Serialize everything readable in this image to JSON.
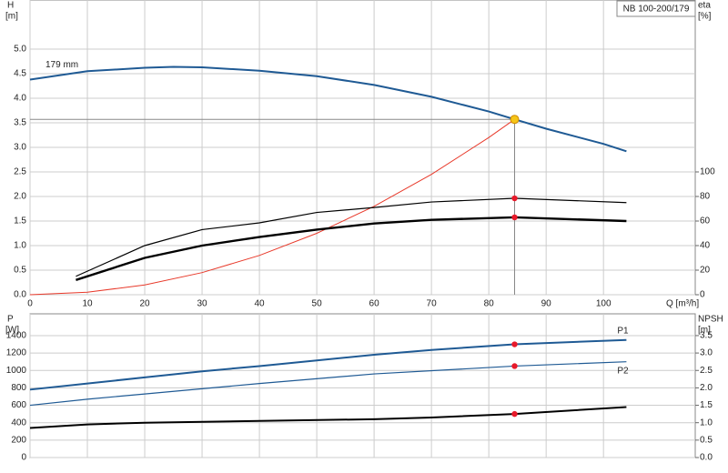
{
  "chart_data": [
    {
      "type": "line",
      "title": "NB 100-200/179",
      "y_label": "H",
      "y_unit": "[m]",
      "y2_label": "eta",
      "y2_unit": "[%]",
      "x_label": "Q [m³/h]",
      "xlim": [
        0,
        116
      ],
      "xticks": [
        0,
        10,
        20,
        30,
        40,
        50,
        60,
        70,
        80,
        90,
        100
      ],
      "ylim": [
        0,
        6
      ],
      "yticks": [
        {
          "value": 0,
          "label": "0.0"
        },
        0.5,
        {
          "value": 1,
          "label": "1.0"
        },
        1.5,
        {
          "value": 2,
          "label": "2.0"
        },
        2.5,
        {
          "value": 3,
          "label": "3.0"
        },
        3.5,
        {
          "value": 4,
          "label": "4.0"
        },
        4.5,
        {
          "value": 5,
          "label": "5.0"
        }
      ],
      "y2lim": [
        0,
        240
      ],
      "y2ticks": [
        0,
        20,
        40,
        60,
        80,
        100
      ],
      "grid": true,
      "duty_q": 84.5,
      "series": [
        {
          "name": "179 mm",
          "color": "#1f5a94",
          "width": 2,
          "duty_color": "#f5c518",
          "x": [
            0,
            10,
            20,
            25,
            30,
            40,
            50,
            60,
            70,
            80,
            84.5,
            90,
            100,
            104
          ],
          "values": [
            4.38,
            4.55,
            4.62,
            4.64,
            4.63,
            4.56,
            4.45,
            4.27,
            4.03,
            3.73,
            3.57,
            3.38,
            3.07,
            2.92
          ],
          "duty_point": 3.57
        },
        {
          "color": "#e8392a",
          "width": 1,
          "x": [
            0,
            10,
            20,
            30,
            40,
            50,
            60,
            70,
            80,
            84.5
          ],
          "values": [
            0,
            0.05,
            0.2,
            0.45,
            0.8,
            1.25,
            1.8,
            2.45,
            3.2,
            3.57
          ]
        },
        {
          "color": "#000000",
          "width": 1.2,
          "axis": "y2",
          "duty_color": "#e8192a",
          "x": [
            8,
            20,
            30,
            40,
            50,
            60,
            70,
            84.5,
            104
          ],
          "values": [
            15,
            40,
            53,
            58.5,
            67,
            71,
            75.5,
            78.5,
            75
          ],
          "duty_point": 78.5
        },
        {
          "color": "#000000",
          "width": 2.4,
          "axis": "y2",
          "duty_color": "#e8192a",
          "x": [
            8,
            20,
            30,
            40,
            50,
            60,
            70,
            84.5,
            104
          ],
          "values": [
            12,
            30,
            40,
            47,
            53,
            58,
            61,
            63,
            60
          ],
          "duty_point": 63
        }
      ]
    },
    {
      "type": "line",
      "y_label": "P",
      "y_unit": "[W]",
      "y2_label": "NPSH",
      "y2_unit": "[m]",
      "ylim": [
        0,
        1650
      ],
      "yticks": [
        0,
        200,
        400,
        600,
        800,
        1000,
        1200,
        1400
      ],
      "y2lim": [
        0,
        4.125
      ],
      "y2ticks": [
        {
          "value": 0,
          "label": "0.0"
        },
        0.5,
        {
          "value": 1,
          "label": "1.0"
        },
        1.5,
        {
          "value": 2,
          "label": "2.0"
        },
        2.5,
        {
          "value": 3,
          "label": "3.0"
        },
        3.5
      ],
      "grid": true,
      "series": [
        {
          "name": "P1",
          "color": "#1f5a94",
          "width": 2,
          "duty_color": "#e8192a",
          "x": [
            0,
            10,
            20,
            30,
            40,
            50,
            60,
            70,
            84.5,
            104
          ],
          "values": [
            780,
            850,
            920,
            990,
            1050,
            1115,
            1180,
            1235,
            1300,
            1350
          ],
          "duty_point": 1300
        },
        {
          "name": "P2",
          "color": "#1f5a94",
          "width": 1.2,
          "duty_color": "#e8192a",
          "x": [
            0,
            10,
            20,
            40,
            60,
            84.5,
            104
          ],
          "values": [
            600,
            670,
            730,
            850,
            960,
            1050,
            1100
          ],
          "duty_point": 1050
        },
        {
          "color": "#000000",
          "width": 2,
          "axis": "y2",
          "duty_color": "#e8192a",
          "x": [
            0,
            10,
            20,
            40,
            60,
            70,
            84.5,
            104
          ],
          "values": [
            0.85,
            0.95,
            1.0,
            1.05,
            1.1,
            1.15,
            1.25,
            1.45
          ],
          "duty_point": 1.25
        }
      ]
    }
  ]
}
